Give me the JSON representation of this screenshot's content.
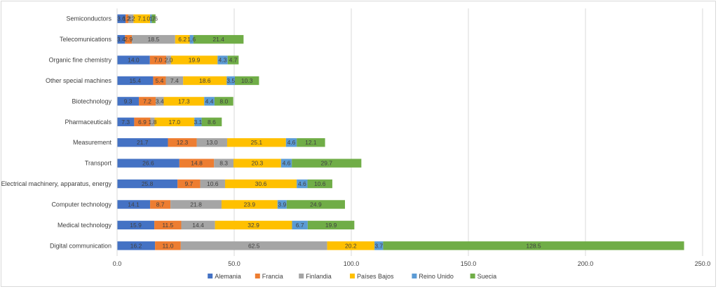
{
  "chart_data": {
    "type": "bar",
    "orientation": "horizontal",
    "stacked": true,
    "title": "",
    "xlabel": "",
    "ylabel": "",
    "xlim": [
      0,
      250
    ],
    "x_ticks": [
      0,
      50,
      100,
      150,
      200,
      250
    ],
    "x_tick_labels": [
      "0.0",
      "50.0",
      "100.0",
      "150.0",
      "200.0",
      "250.0"
    ],
    "grid": "vertical",
    "legend_position": "bottom",
    "categories": [
      "Semiconductors",
      "Telecomunications",
      "Organic fine chemistry",
      "Other special machines",
      "Biotechnology",
      "Pharmaceuticals",
      "Measurement",
      "Transport",
      "Electrical machinery, apparatus, energy",
      "Computer technology",
      "Medical technology",
      "Digital communication"
    ],
    "series": [
      {
        "name": "Alemania",
        "color": "#4472c4",
        "values": [
          3.6,
          3.4,
          14.0,
          15.4,
          9.3,
          7.3,
          21.7,
          26.6,
          25.8,
          14.1,
          15.9,
          16.2
        ]
      },
      {
        "name": "Francia",
        "color": "#ed7d31",
        "values": [
          1.2,
          2.9,
          7.0,
          5.4,
          7.2,
          6.9,
          12.3,
          14.8,
          9.7,
          8.7,
          11.5,
          11.0
        ]
      },
      {
        "name": "Finlandia",
        "color": "#a5a5a5",
        "values": [
          2.2,
          18.5,
          2.0,
          7.4,
          3.4,
          1.8,
          13.0,
          8.3,
          10.6,
          21.8,
          14.4,
          62.5
        ]
      },
      {
        "name": "Países Bajos",
        "color": "#ffc000",
        "values": [
          7.1,
          6.2,
          19.9,
          18.6,
          17.3,
          17.0,
          25.1,
          20.3,
          30.6,
          23.9,
          32.9,
          20.2
        ]
      },
      {
        "name": "Reino Unido",
        "color": "#5b9bd5",
        "values": [
          0.7,
          1.6,
          4.3,
          3.5,
          4.4,
          3.1,
          4.6,
          4.6,
          4.6,
          3.9,
          6.7,
          3.7
        ]
      },
      {
        "name": "Suecia",
        "color": "#70ad47",
        "values": [
          1.6,
          21.4,
          4.7,
          10.3,
          8.0,
          8.6,
          12.1,
          29.7,
          10.6,
          24.9,
          19.9,
          128.5
        ]
      }
    ],
    "data_labels": [
      [
        "3.6",
        "1.2",
        "2.2",
        "7.1",
        "0.7",
        "1.6"
      ],
      [
        "3.4",
        "2.9",
        "18.5",
        "6.2",
        "1.6",
        "21.4"
      ],
      [
        "14.0",
        "7.0",
        "2.0",
        "19.9",
        "4.3",
        "4.7"
      ],
      [
        "15.4",
        "5.4",
        "7.4",
        "18.6",
        "3.5",
        "10.3"
      ],
      [
        "9.3",
        "7.2",
        "3.4",
        "17.3",
        "4.4",
        "8.0"
      ],
      [
        "7.3",
        "6.9",
        "1.8",
        "17.0",
        "3.1",
        "8.6"
      ],
      [
        "21.7",
        "12.3",
        "13.0",
        "25.1",
        "4.6",
        "12.1"
      ],
      [
        "26.6",
        "14.8",
        "8.3",
        "20.3",
        "4.6",
        "29.7"
      ],
      [
        "25.8",
        "9.7",
        "10.6",
        "30.6",
        "4.6",
        "10.6"
      ],
      [
        "14.1",
        "8.7",
        "21.8",
        "23.9",
        "3.9",
        "24.9"
      ],
      [
        "15.9",
        "11.5",
        "14.4",
        "32.9",
        "6.7",
        "19.9"
      ],
      [
        "16.2",
        "11.0",
        "62.5",
        "20.2",
        "3.7",
        "128.5"
      ]
    ]
  }
}
